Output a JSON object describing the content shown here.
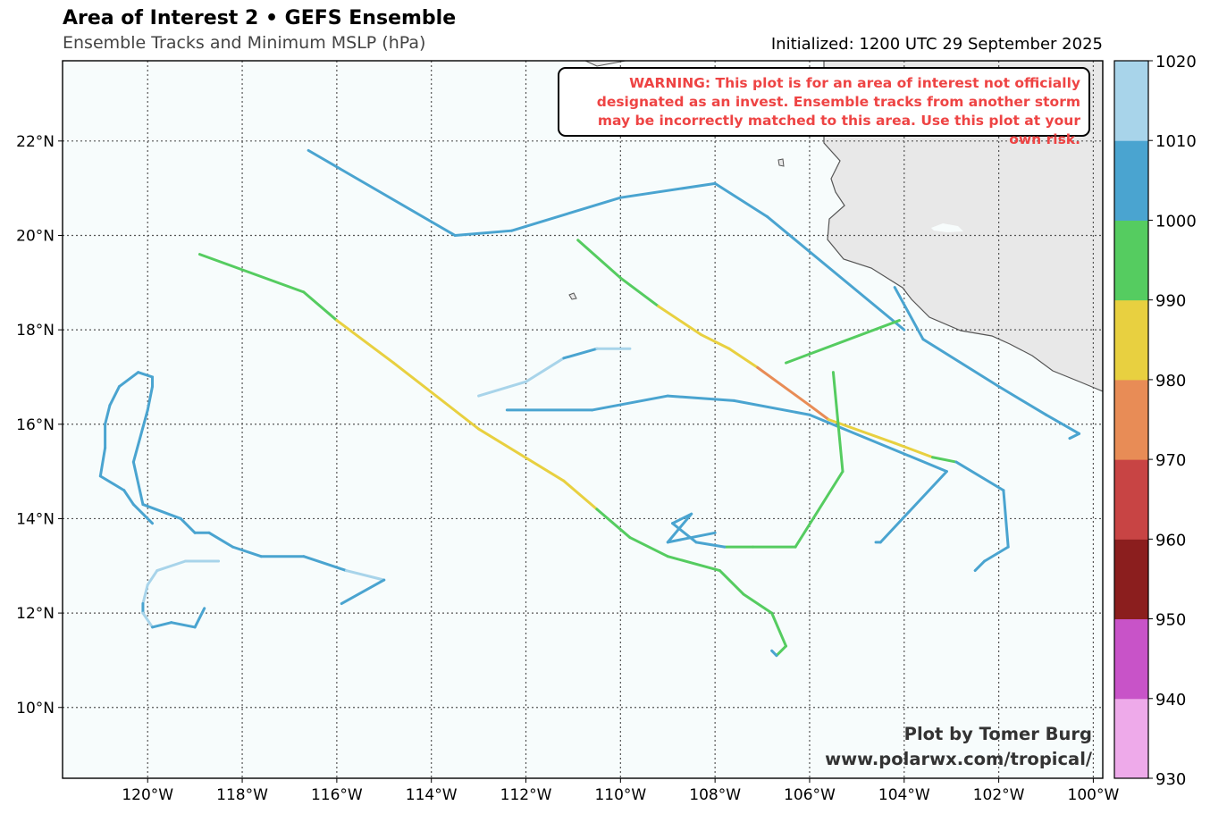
{
  "header": {
    "title": "Area of Interest 2 • GEFS Ensemble",
    "subtitle": "Ensemble Tracks and Minimum MSLP (hPa)",
    "initialized": "Initialized: 1200 UTC 29 September 2025"
  },
  "warning": "WARNING: This plot is for an area of interest not officially designated as an invest. Ensemble tracks from another storm may be incorrectly matched to this area. Use this plot at your own risk.",
  "credit": {
    "line1": "Plot by Tomer Burg",
    "line2": "www.polarwx.com/tropical/"
  },
  "map": {
    "lon_range": [
      -121.8,
      -99.8
    ],
    "lat_range": [
      8.5,
      23.7
    ],
    "lon_ticks": [
      "120°W",
      "118°W",
      "116°W",
      "114°W",
      "112°W",
      "110°W",
      "108°W",
      "106°W",
      "104°W",
      "102°W",
      "100°W"
    ],
    "lat_ticks": [
      "10°N",
      "12°N",
      "14°N",
      "16°N",
      "18°N",
      "20°N",
      "22°N"
    ],
    "ocean_color": "#f7fcfc",
    "land_color": "#e8e8e8"
  },
  "colorbar": {
    "levels": [
      "930",
      "940",
      "950",
      "960",
      "970",
      "980",
      "990",
      "1000",
      "1010",
      "1020"
    ],
    "colors": [
      "#eeaaea",
      "#c853c8",
      "#8b1e1e",
      "#c84444",
      "#e88c56",
      "#e8d040",
      "#55cc60",
      "#4aa4d0",
      "#a8d4ea"
    ]
  },
  "tracks": [
    {
      "points": [
        [
          -116.6,
          21.8,
          1005
        ],
        [
          -113.5,
          20.0,
          1005
        ],
        [
          -112.3,
          20.1,
          1005
        ],
        [
          -110.0,
          20.8,
          1005
        ],
        [
          -108.0,
          21.1,
          1005
        ],
        [
          -106.9,
          20.4,
          1005
        ],
        [
          -104.0,
          18.0,
          1005
        ]
      ]
    },
    {
      "points": [
        [
          -104.2,
          18.9,
          1005
        ],
        [
          -103.6,
          17.8,
          1005
        ],
        [
          -102.0,
          16.8,
          1005
        ],
        [
          -101.0,
          16.2,
          1005
        ],
        [
          -100.3,
          15.8,
          1005
        ],
        [
          -100.5,
          15.7,
          1005
        ]
      ]
    },
    {
      "points": [
        [
          -118.9,
          19.6,
          995
        ],
        [
          -116.7,
          18.8,
          995
        ],
        [
          -116.0,
          18.2,
          985
        ],
        [
          -114.8,
          17.3,
          985
        ],
        [
          -113.0,
          15.9,
          985
        ],
        [
          -111.2,
          14.8,
          985
        ],
        [
          -110.5,
          14.2,
          995
        ],
        [
          -109.8,
          13.6,
          995
        ],
        [
          -109.0,
          13.2,
          995
        ],
        [
          -107.9,
          12.9,
          995
        ],
        [
          -107.4,
          12.4,
          995
        ],
        [
          -106.8,
          12.0,
          995
        ],
        [
          -106.5,
          11.3,
          995
        ],
        [
          -106.7,
          11.1,
          1005
        ],
        [
          -106.8,
          11.2,
          1005
        ]
      ]
    },
    {
      "points": [
        [
          -110.9,
          19.9,
          995
        ],
        [
          -110.0,
          19.1,
          995
        ],
        [
          -109.2,
          18.5,
          985
        ],
        [
          -108.3,
          17.9,
          985
        ],
        [
          -107.7,
          17.6,
          985
        ],
        [
          -107.1,
          17.2,
          975
        ],
        [
          -106.0,
          16.4,
          975
        ],
        [
          -105.6,
          16.1,
          985
        ],
        [
          -104.2,
          15.6,
          985
        ],
        [
          -103.4,
          15.3,
          995
        ],
        [
          -102.9,
          15.2,
          1005
        ],
        [
          -101.9,
          14.6,
          1005
        ],
        [
          -101.8,
          13.4,
          1005
        ],
        [
          -102.3,
          13.1,
          1005
        ],
        [
          -102.5,
          12.9,
          1005
        ]
      ]
    },
    {
      "points": [
        [
          -112.4,
          16.3,
          1005
        ],
        [
          -110.6,
          16.3,
          1005
        ],
        [
          -109.0,
          16.6,
          1005
        ],
        [
          -107.6,
          16.5,
          1005
        ],
        [
          -106.0,
          16.2,
          1005
        ],
        [
          -103.1,
          15.0,
          1005
        ],
        [
          -104.5,
          13.5,
          1005
        ],
        [
          -104.6,
          13.5,
          1005
        ]
      ]
    },
    {
      "points": [
        [
          -106.5,
          17.3,
          995
        ],
        [
          -104.1,
          18.2,
          995
        ]
      ]
    },
    {
      "points": [
        [
          -105.5,
          17.1,
          995
        ],
        [
          -105.3,
          15.0,
          995
        ],
        [
          -106.3,
          13.4,
          995
        ],
        [
          -107.2,
          13.4,
          995
        ],
        [
          -107.8,
          13.4,
          1005
        ],
        [
          -108.4,
          13.5,
          1005
        ],
        [
          -108.9,
          13.9,
          1005
        ],
        [
          -108.5,
          14.1,
          1005
        ],
        [
          -109.0,
          13.5,
          1005
        ],
        [
          -108.0,
          13.7,
          1005
        ]
      ]
    },
    {
      "points": [
        [
          -113.0,
          16.6,
          1015
        ],
        [
          -112.0,
          16.9,
          1015
        ],
        [
          -111.2,
          17.4,
          1005
        ],
        [
          -110.5,
          17.6,
          1015
        ],
        [
          -109.8,
          17.6,
          1015
        ]
      ]
    },
    {
      "points": [
        [
          -119.9,
          13.9,
          1005
        ],
        [
          -120.3,
          14.3,
          1005
        ],
        [
          -120.5,
          14.6,
          1005
        ],
        [
          -121.0,
          14.9,
          1005
        ],
        [
          -120.9,
          15.5,
          1005
        ],
        [
          -120.9,
          16.0,
          1005
        ],
        [
          -120.8,
          16.4,
          1005
        ],
        [
          -120.6,
          16.8,
          1005
        ],
        [
          -120.2,
          17.1,
          1005
        ],
        [
          -119.9,
          17.0,
          1005
        ],
        [
          -119.9,
          16.8,
          1005
        ],
        [
          -120.0,
          16.3,
          1005
        ],
        [
          -120.3,
          15.2,
          1005
        ],
        [
          -120.1,
          14.3,
          1005
        ],
        [
          -119.3,
          14.0,
          1005
        ],
        [
          -119.0,
          13.7,
          1005
        ],
        [
          -118.7,
          13.7,
          1005
        ],
        [
          -118.2,
          13.4,
          1005
        ],
        [
          -117.6,
          13.2,
          1005
        ],
        [
          -116.7,
          13.2,
          1005
        ],
        [
          -115.8,
          12.9,
          1015
        ],
        [
          -115.0,
          12.7,
          1005
        ],
        [
          -115.9,
          12.2,
          1015
        ]
      ]
    },
    {
      "points": [
        [
          -118.5,
          13.1,
          1015
        ],
        [
          -119.2,
          13.1,
          1015
        ],
        [
          -119.8,
          12.9,
          1015
        ],
        [
          -120.0,
          12.6,
          1015
        ],
        [
          -120.1,
          12.2,
          1005
        ],
        [
          -120.1,
          12.0,
          1015
        ],
        [
          -119.9,
          11.7,
          1005
        ],
        [
          -119.5,
          11.8,
          1005
        ],
        [
          -119.0,
          11.7,
          1005
        ],
        [
          -118.8,
          12.1,
          1005
        ]
      ]
    }
  ]
}
